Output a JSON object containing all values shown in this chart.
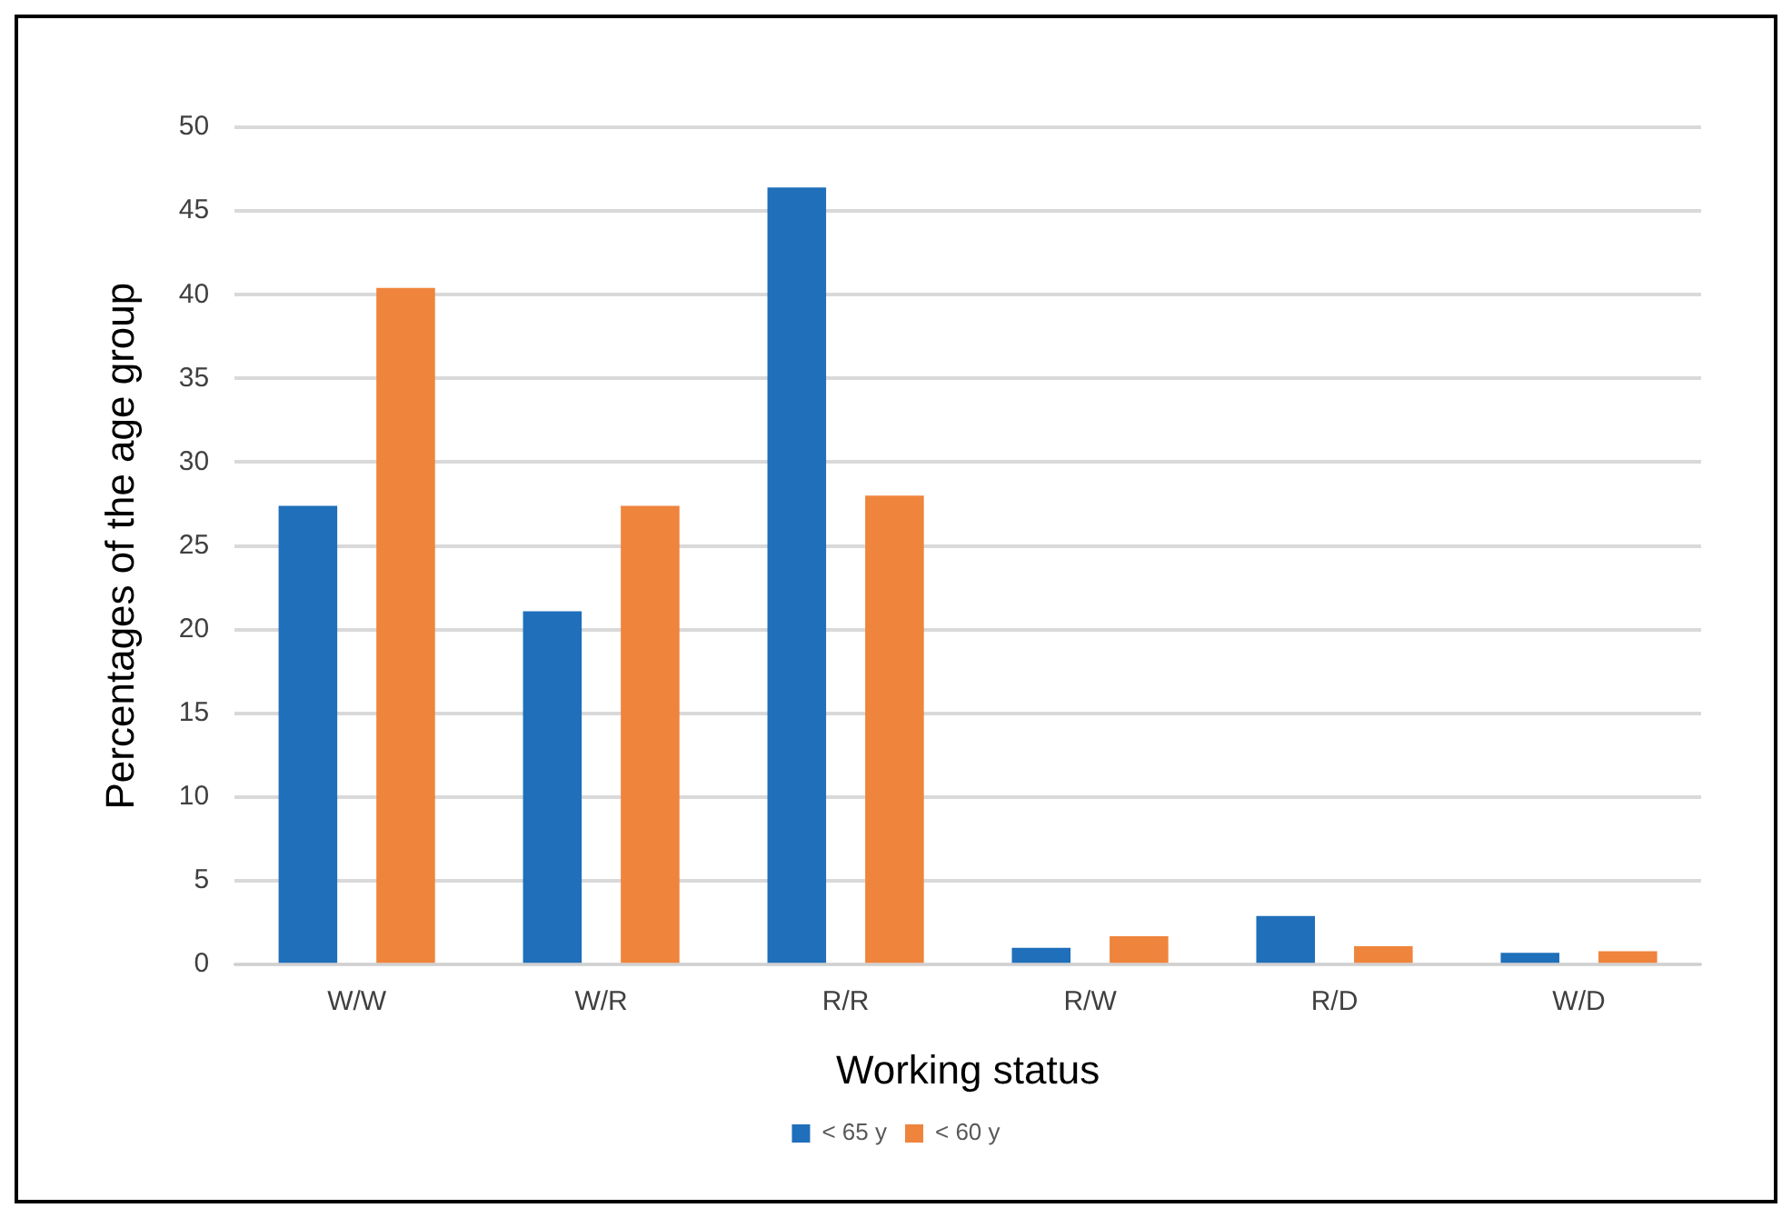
{
  "chart_data": {
    "type": "bar",
    "xlabel": "Working status",
    "ylabel": "Percentages of the age group",
    "categories": [
      "W/W",
      "W/R",
      "R/R",
      "R/W",
      "R/D",
      "W/D"
    ],
    "series": [
      {
        "name": "< 65 y",
        "color": "#1f6fba",
        "values": [
          27.4,
          21.1,
          46.4,
          1.0,
          2.9,
          0.7
        ]
      },
      {
        "name": "< 60 y",
        "color": "#ef843c",
        "values": [
          40.4,
          27.4,
          28.0,
          1.7,
          1.1,
          0.8
        ]
      }
    ],
    "ylim": [
      0,
      50
    ],
    "yticks": [
      0,
      5,
      10,
      15,
      20,
      25,
      30,
      35,
      40,
      45,
      50
    ],
    "grid": "y",
    "legend": "bottom"
  }
}
